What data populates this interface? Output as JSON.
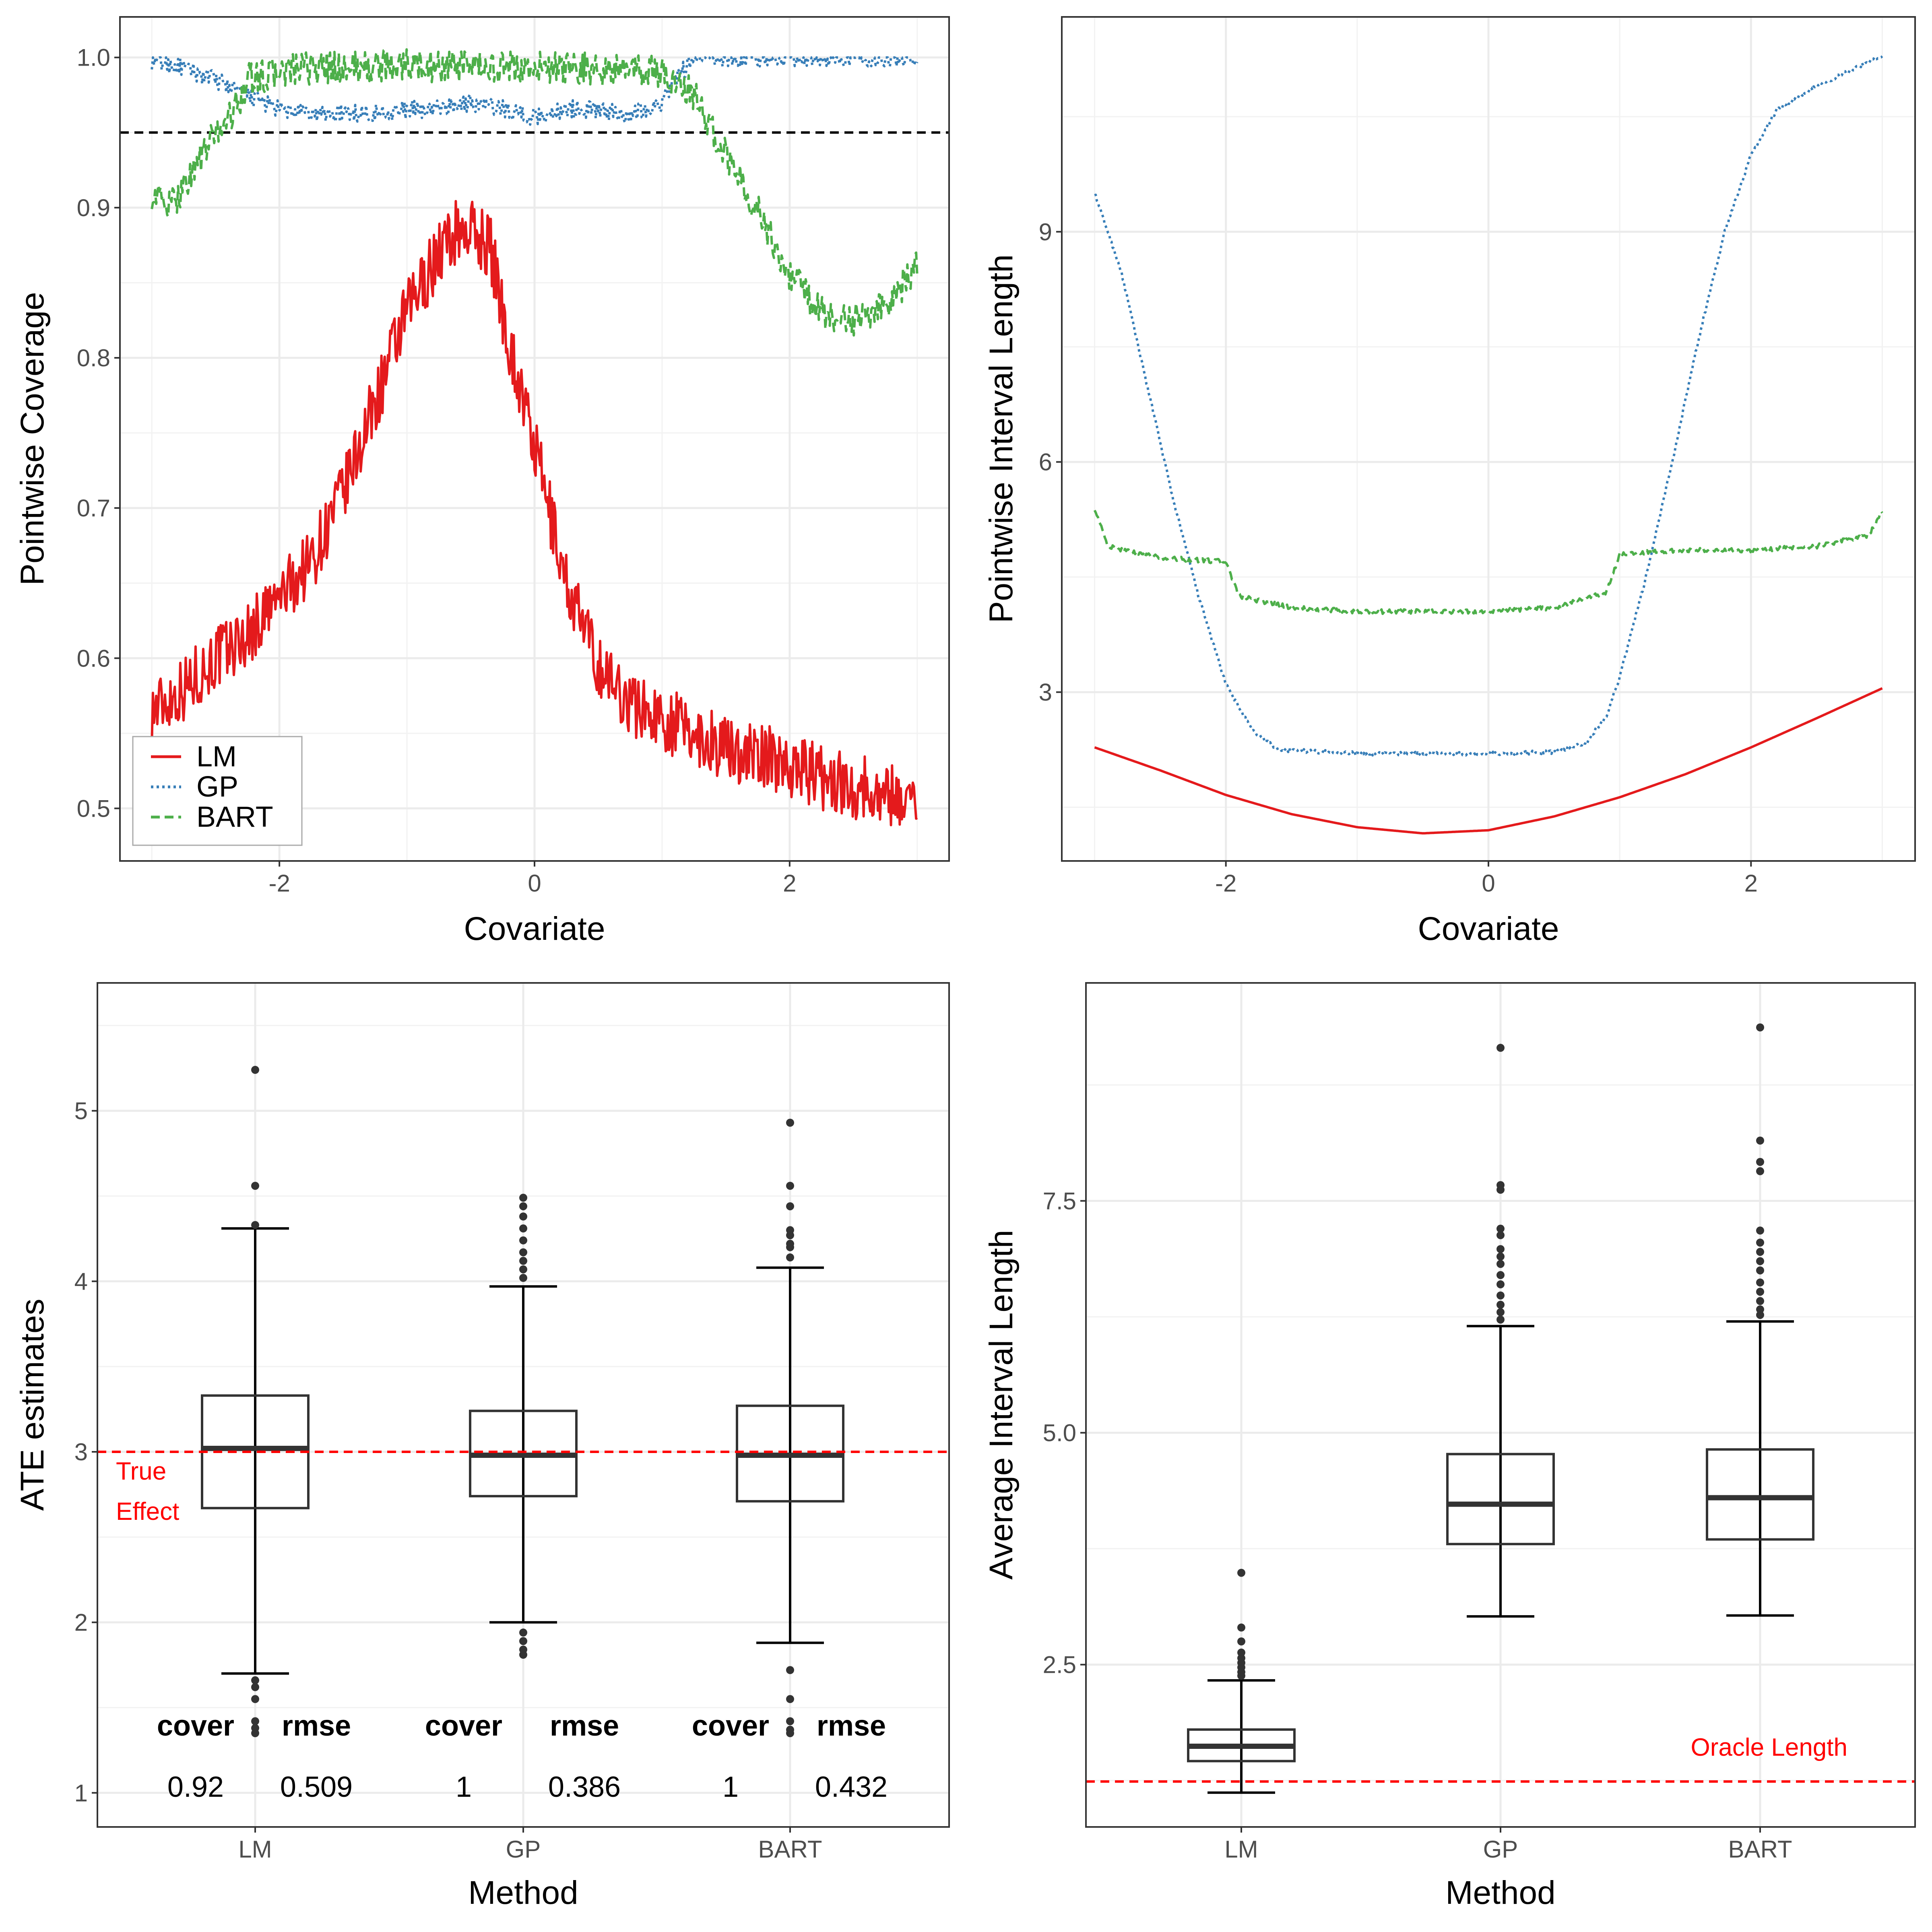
{
  "colors": {
    "LM": "#e41a1c",
    "GP": "#377eb8",
    "BART": "#4daf4a",
    "reference": "#ff0000",
    "box": "#333333"
  },
  "chart_data": [
    {
      "id": "coverage",
      "type": "line",
      "title": "",
      "xlabel": "Covariate",
      "ylabel": "Pointwise Coverage",
      "xlim": [
        -3.25,
        3.25
      ],
      "ylim": [
        0.465,
        1.027
      ],
      "xticks": [
        "-2",
        "0",
        "2"
      ],
      "yticks": [
        "0.5",
        "0.6",
        "0.7",
        "0.8",
        "0.9",
        "1.0"
      ],
      "xtick_values": [
        -2,
        0,
        2
      ],
      "ytick_values": [
        0.5,
        0.6,
        0.7,
        0.8,
        0.9,
        1.0
      ],
      "reference_line": {
        "y": 0.95,
        "style": "dashed",
        "color": "#000000"
      },
      "legend": {
        "position": "bottom-left",
        "entries": [
          "LM",
          "GP",
          "BART"
        ]
      },
      "series": [
        {
          "name": "LM",
          "style": "solid",
          "x": [
            -3.0,
            -2.75,
            -2.5,
            -2.25,
            -2.0,
            -1.75,
            -1.5,
            -1.25,
            -1.0,
            -0.75,
            -0.6,
            -0.5,
            -0.35,
            -0.2,
            0.0,
            0.25,
            0.5,
            0.75,
            1.0,
            1.25,
            1.5,
            1.75,
            2.0,
            2.25,
            2.5,
            2.75,
            3.0
          ],
          "y": [
            0.565,
            0.58,
            0.6,
            0.615,
            0.64,
            0.665,
            0.71,
            0.77,
            0.83,
            0.87,
            0.885,
            0.885,
            0.875,
            0.81,
            0.74,
            0.65,
            0.595,
            0.57,
            0.56,
            0.55,
            0.54,
            0.535,
            0.53,
            0.52,
            0.515,
            0.51,
            0.505
          ]
        },
        {
          "name": "GP",
          "style": "dotted",
          "x": [
            -3.0,
            -2.75,
            -2.5,
            -2.25,
            -2.0,
            -1.75,
            -1.5,
            -1.25,
            -1.0,
            -0.75,
            -0.5,
            -0.25,
            0.0,
            0.25,
            0.5,
            0.75,
            1.0,
            1.1,
            1.25,
            1.5,
            2.0,
            2.5,
            3.0
          ],
          "y": [
            0.998,
            0.993,
            0.985,
            0.975,
            0.965,
            0.962,
            0.963,
            0.963,
            0.965,
            0.966,
            0.97,
            0.966,
            0.96,
            0.966,
            0.965,
            0.962,
            0.97,
            0.985,
            1.0,
            1.0,
            1.0,
            1.0,
            1.0
          ]
        },
        {
          "name": "BART",
          "style": "dashed",
          "x": [
            -3.0,
            -2.85,
            -2.75,
            -2.6,
            -2.5,
            -2.35,
            -2.25,
            -2.0,
            -1.75,
            -1.5,
            -1.0,
            -0.5,
            0.0,
            0.5,
            1.0,
            1.25,
            1.4,
            1.6,
            1.8,
            2.0,
            2.25,
            2.5,
            2.75,
            3.0
          ],
          "y": [
            0.91,
            0.9,
            0.915,
            0.935,
            0.95,
            0.965,
            0.985,
            0.99,
            0.993,
            0.993,
            0.995,
            0.993,
            0.993,
            0.992,
            0.99,
            0.975,
            0.95,
            0.92,
            0.89,
            0.855,
            0.83,
            0.825,
            0.835,
            0.86
          ]
        }
      ]
    },
    {
      "id": "interval_length",
      "type": "line",
      "title": "",
      "xlabel": "Covariate",
      "ylabel": "Pointwise Interval Length",
      "xlim": [
        -3.25,
        3.25
      ],
      "ylim": [
        0.8,
        11.8
      ],
      "xticks": [
        "-2",
        "0",
        "2"
      ],
      "yticks": [
        "3",
        "6",
        "9"
      ],
      "xtick_values": [
        -2,
        0,
        2
      ],
      "ytick_values": [
        3,
        6,
        9
      ],
      "series": [
        {
          "name": "LM",
          "style": "solid",
          "x": [
            -3.0,
            -2.5,
            -2.0,
            -1.5,
            -1.0,
            -0.5,
            0.0,
            0.5,
            1.0,
            1.5,
            2.0,
            2.5,
            3.0
          ],
          "y": [
            2.28,
            1.98,
            1.66,
            1.41,
            1.24,
            1.16,
            1.2,
            1.38,
            1.63,
            1.93,
            2.28,
            2.66,
            3.05
          ]
        },
        {
          "name": "GP",
          "style": "dotted",
          "x": [
            -3.0,
            -2.8,
            -2.6,
            -2.4,
            -2.2,
            -2.0,
            -1.8,
            -1.6,
            -1.0,
            0.0,
            0.5,
            0.75,
            0.9,
            1.0,
            1.2,
            1.4,
            1.6,
            1.8,
            2.0,
            2.2,
            2.5,
            2.75,
            3.0
          ],
          "y": [
            9.5,
            8.5,
            7.0,
            5.5,
            4.2,
            3.1,
            2.5,
            2.25,
            2.2,
            2.2,
            2.22,
            2.35,
            2.7,
            3.2,
            4.5,
            6.0,
            7.6,
            9.0,
            10.0,
            10.6,
            10.9,
            11.1,
            11.3
          ]
        },
        {
          "name": "BART",
          "style": "dashed",
          "x": [
            -3.0,
            -2.9,
            -2.5,
            -2.0,
            -1.9,
            -1.5,
            -1.0,
            0.0,
            0.5,
            0.9,
            1.0,
            1.5,
            2.0,
            2.5,
            2.9,
            3.0
          ],
          "y": [
            5.4,
            4.9,
            4.75,
            4.7,
            4.25,
            4.1,
            4.05,
            4.05,
            4.1,
            4.3,
            4.8,
            4.85,
            4.85,
            4.9,
            5.05,
            5.35
          ]
        }
      ]
    },
    {
      "id": "ate_estimates",
      "type": "box",
      "title": "",
      "xlabel": "Method",
      "ylabel": "ATE estimates",
      "categories": [
        "LM",
        "GP",
        "BART"
      ],
      "ylim": [
        0.8,
        5.75
      ],
      "yticks": [
        "1",
        "2",
        "3",
        "4",
        "5"
      ],
      "ytick_values": [
        1,
        2,
        3,
        4,
        5
      ],
      "boxes": [
        {
          "name": "LM",
          "whisker_low": 1.7,
          "q1": 2.67,
          "median": 3.02,
          "q3": 3.33,
          "whisker_high": 4.31,
          "outliers": [
            5.24,
            4.56,
            4.33,
            1.66,
            1.62,
            1.55,
            1.42,
            1.38,
            1.35
          ]
        },
        {
          "name": "GP",
          "whisker_low": 2.0,
          "q1": 2.74,
          "median": 2.98,
          "q3": 3.24,
          "whisker_high": 3.97,
          "outliers": [
            4.49,
            4.44,
            4.38,
            4.31,
            4.24,
            4.17,
            4.12,
            4.07,
            4.02,
            1.94,
            1.89,
            1.84,
            1.81
          ]
        },
        {
          "name": "BART",
          "whisker_low": 1.88,
          "q1": 2.71,
          "median": 2.98,
          "q3": 3.27,
          "whisker_high": 4.08,
          "outliers": [
            4.93,
            4.56,
            4.44,
            4.3,
            4.27,
            4.22,
            4.2,
            4.14,
            1.72,
            1.55,
            1.42,
            1.37,
            1.35
          ]
        }
      ],
      "reference_line": {
        "y": 3.0,
        "label_line1": "True",
        "label_line2": "Effect"
      },
      "stats": {
        "cover_label": "cover",
        "rmse_label": "rmse",
        "values": [
          {
            "method": "LM",
            "cover": "0.92",
            "rmse": "0.509"
          },
          {
            "method": "GP",
            "cover": "1",
            "rmse": "0.386"
          },
          {
            "method": "BART",
            "cover": "1",
            "rmse": "0.432"
          }
        ]
      }
    },
    {
      "id": "avg_interval_length",
      "type": "box",
      "title": "",
      "xlabel": "Method",
      "ylabel": "Average Interval Length",
      "categories": [
        "LM",
        "GP",
        "BART"
      ],
      "ylim": [
        0.75,
        9.85
      ],
      "yticks": [
        "2.5",
        "5.0",
        "7.5"
      ],
      "ytick_values": [
        2.5,
        5.0,
        7.5
      ],
      "boxes": [
        {
          "name": "LM",
          "whisker_low": 1.12,
          "q1": 1.46,
          "median": 1.62,
          "q3": 1.8,
          "whisker_high": 2.33,
          "outliers": [
            3.49,
            2.9,
            2.75,
            2.63,
            2.57,
            2.52,
            2.47,
            2.42,
            2.38
          ]
        },
        {
          "name": "GP",
          "whisker_low": 3.02,
          "q1": 3.8,
          "median": 4.23,
          "q3": 4.77,
          "whisker_high": 6.15,
          "outliers": [
            9.15,
            7.67,
            7.62,
            7.2,
            7.13,
            6.98,
            6.9,
            6.82,
            6.7,
            6.6,
            6.48,
            6.38,
            6.3,
            6.22
          ]
        },
        {
          "name": "BART",
          "whisker_low": 3.03,
          "q1": 3.85,
          "median": 4.3,
          "q3": 4.82,
          "whisker_high": 6.2,
          "outliers": [
            9.37,
            8.15,
            7.92,
            7.82,
            7.18,
            7.05,
            6.95,
            6.85,
            6.75,
            6.62,
            6.52,
            6.42,
            6.33,
            6.27
          ]
        }
      ],
      "reference_line": {
        "y": 1.24,
        "label": "Oracle Length"
      }
    }
  ]
}
